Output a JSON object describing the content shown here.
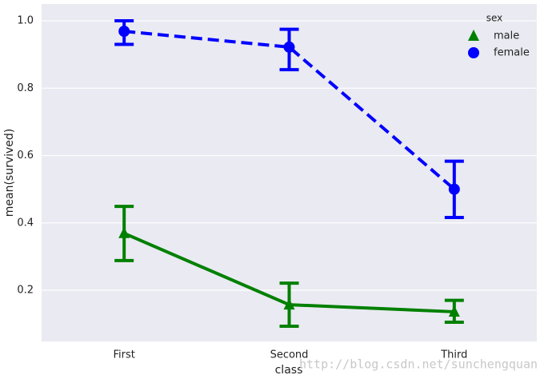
{
  "chart_data": {
    "type": "point",
    "x_label": "class",
    "y_label": "mean(survived)",
    "categories": [
      "First",
      "Second",
      "Third"
    ],
    "series": [
      {
        "name": "male",
        "color": "#008000",
        "marker": "triangle",
        "linestyle": "solid",
        "values": [
          0.369,
          0.157,
          0.136
        ],
        "ci": [
          [
            0.288,
            0.449
          ],
          [
            0.093,
            0.221
          ],
          [
            0.105,
            0.17
          ]
        ]
      },
      {
        "name": "female",
        "color": "#0000ff",
        "marker": "circle",
        "linestyle": "dashed",
        "values": [
          0.969,
          0.922,
          0.5
        ],
        "ci": [
          [
            0.93,
            1.0
          ],
          [
            0.855,
            0.975
          ],
          [
            0.416,
            0.583
          ]
        ]
      }
    ],
    "legend_title": "sex",
    "legend": "upper right",
    "ylim": [
      0.048,
      1.05
    ],
    "yticks": [
      0.2,
      0.4,
      0.6,
      0.8,
      {
        "value": 1.0,
        "label": "1.0"
      }
    ],
    "grid": true,
    "watermark": "http://blog.csdn.net/sunchengquan"
  }
}
